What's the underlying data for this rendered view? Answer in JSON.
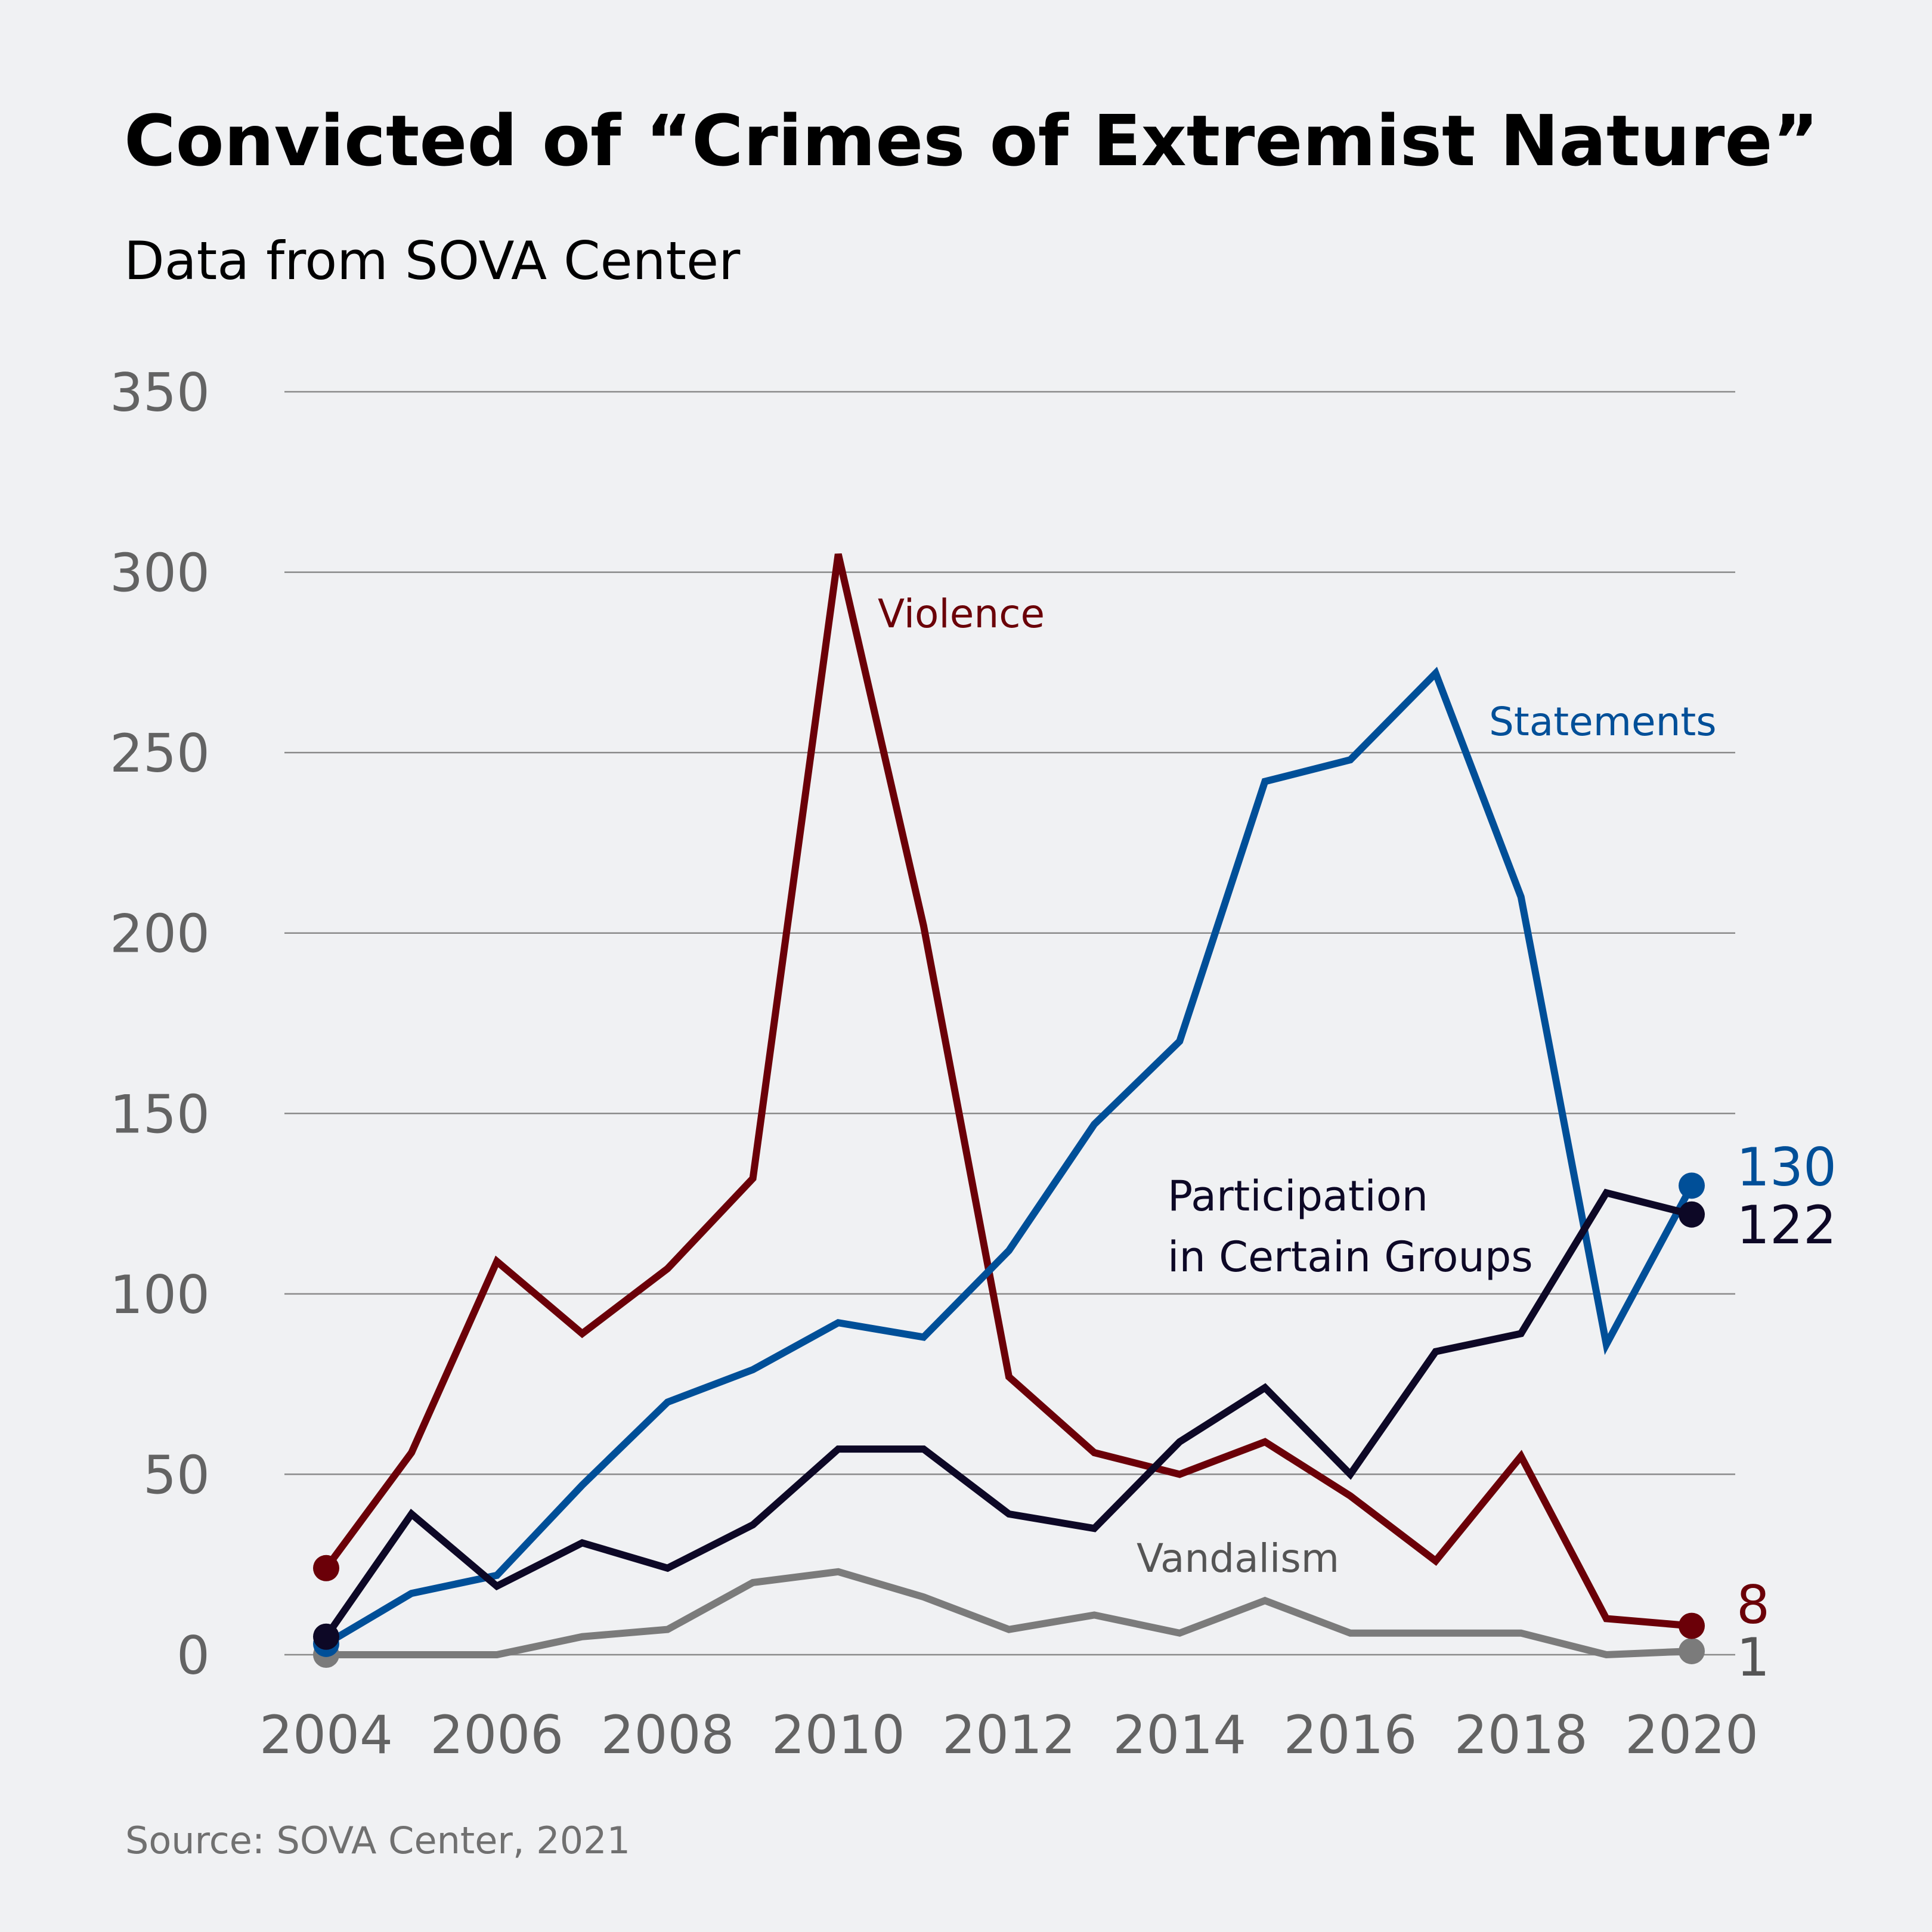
{
  "chart_data": {
    "type": "line",
    "title": "Convicted of “Crimes of Extremist Nature”",
    "subtitle": "Data from SOVA Center",
    "source": "Source: SOVA Center, 2021",
    "xlabel": "",
    "ylabel": "",
    "x": [
      2004,
      2005,
      2006,
      2007,
      2008,
      2009,
      2010,
      2011,
      2012,
      2013,
      2014,
      2015,
      2016,
      2017,
      2018,
      2019,
      2020
    ],
    "x_tick_labels": [
      "2004",
      "2006",
      "2008",
      "2010",
      "2012",
      "2014",
      "2016",
      "2018",
      "2020"
    ],
    "y_tick_labels": [
      "0",
      "50",
      "100",
      "150",
      "200",
      "250",
      "300",
      "350"
    ],
    "ylim": [
      0,
      350
    ],
    "xlim": [
      2004,
      2020
    ],
    "grid": true,
    "legend": "inline labels",
    "series": [
      {
        "name": "Violence",
        "color": "#6b0008",
        "values": [
          24,
          56,
          109,
          89,
          107,
          132,
          305,
          202,
          77,
          56,
          50,
          59,
          44,
          26,
          55,
          10,
          8
        ],
        "end_label": "8"
      },
      {
        "name": "Statements",
        "color": "#004f98",
        "values": [
          3,
          17,
          22,
          47,
          70,
          79,
          92,
          88,
          112,
          147,
          170,
          242,
          248,
          272,
          210,
          86,
          130
        ],
        "end_label": "130"
      },
      {
        "name": "Participation in Certain Groups",
        "label_lines": [
          "Participation",
          "in Certain Groups"
        ],
        "color": "#0d0826",
        "values": [
          5,
          39,
          19,
          31,
          24,
          36,
          57,
          57,
          39,
          35,
          59,
          74,
          50,
          84,
          89,
          128,
          122
        ],
        "end_label": "122"
      },
      {
        "name": "Vandalism",
        "color": "#7b7b7b",
        "label_color": "#555555",
        "values": [
          0,
          0,
          0,
          5,
          7,
          20,
          23,
          16,
          7,
          11,
          6,
          15,
          6,
          6,
          6,
          0,
          1
        ],
        "end_label": "1"
      }
    ]
  }
}
